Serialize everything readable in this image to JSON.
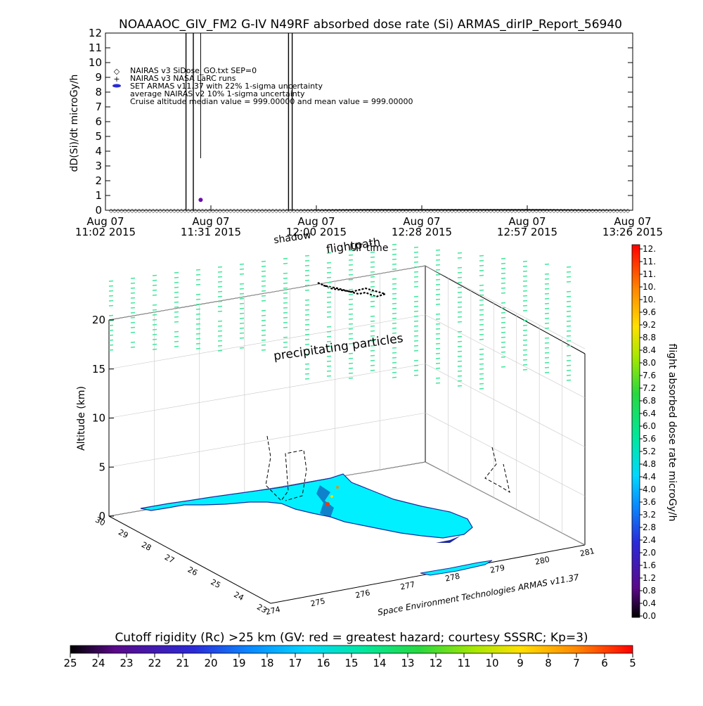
{
  "title": "NOAAAOC_GIV_FM2 G-IV   N49RF  absorbed dose rate (Si) ARMAS_dirIP_Report_56940",
  "top_panel": {
    "ylabel": "dD(Si)/dt microGy/h",
    "xlabel": "UT time",
    "legend": [
      "NAIRAS v3 SiDose_GO.txt SEP=0",
      "NAIRAS v3 NASA LaRC runs",
      "SET ARMAS v11.37 with 22% 1-sigma uncertainty",
      "average NAIRAS v2 10% 1-sigma uncertainty",
      "Cruise altitude median value = 999.00000 and mean value = 999.00000"
    ]
  },
  "three_d_panel": {
    "zlabel": "Altitude (km)",
    "labels": {
      "shadow": "shadow",
      "flightpath": "flightpath",
      "precip": "precipitating particles",
      "credit": "Space Environment Technologies ARMAS v11.37"
    },
    "z_ticks": [
      "0",
      "5",
      "10",
      "15",
      "20"
    ],
    "lat_ticks": [
      "30",
      "29",
      "28",
      "27",
      "26",
      "25",
      "24",
      "23"
    ],
    "lon_ticks": [
      "274",
      "275",
      "276",
      "277",
      "278",
      "279",
      "280",
      "281"
    ]
  },
  "colorbar": {
    "label": "flight absorbed dose rate microGy/h",
    "ticks": [
      "12.",
      "11.",
      "11.",
      "10.",
      "10.",
      "9.6",
      "9.2",
      "8.8",
      "8.4",
      "8.0",
      "7.6",
      "7.2",
      "6.8",
      "6.4",
      "6.0",
      "5.6",
      "5.2",
      "4.8",
      "4.4",
      "4.0",
      "3.6",
      "3.2",
      "2.8",
      "2.4",
      "2.0",
      "1.6",
      "1.2",
      "0.8",
      "0.4",
      "0.0"
    ]
  },
  "cutoff_bar": {
    "label": "Cutoff rigidity (Rc) >25 km (GV: red = greatest hazard; courtesy SSSRC; Kp=3)",
    "ticks": [
      "25",
      "24",
      "23",
      "22",
      "21",
      "20",
      "19",
      "18",
      "17",
      "16",
      "15",
      "14",
      "13",
      "12",
      "11",
      "10",
      "9",
      "8",
      "7",
      "6",
      "5"
    ]
  },
  "chart_data": [
    {
      "type": "line",
      "title": "NOAAAOC_GIV_FM2 G-IV   N49RF  absorbed dose rate (Si) ARMAS_dirIP_Report_56940",
      "xlabel": "UT time",
      "ylabel": "dD(Si)/dt microGy/h",
      "ylim": [
        0,
        12
      ],
      "y_ticks": [
        "0",
        "1",
        "2",
        "3",
        "4",
        "5",
        "6",
        "7",
        "8",
        "9",
        "10",
        "11",
        "12"
      ],
      "x_ticks": [
        {
          "date": "Aug 07",
          "time": "11:02 2015"
        },
        {
          "date": "Aug 07",
          "time": "11:31 2015"
        },
        {
          "date": "Aug 07",
          "time": "12:00 2015"
        },
        {
          "date": "Aug 07",
          "time": "12:28 2015"
        },
        {
          "date": "Aug 07",
          "time": "12:57 2015"
        },
        {
          "date": "Aug 07",
          "time": "13:26 2015"
        }
      ],
      "xlim": [
        "11:02",
        "13:26"
      ],
      "series": [
        {
          "name": "SET ARMAS v11.37 with 22% 1-sigma uncertainty",
          "color": "#6a0dad",
          "points": [
            {
              "x": "11:28",
              "y": 0.7
            }
          ]
        },
        {
          "name": "NAIRAS v3 SiDose_GO.txt SEP=0",
          "color": "#000000",
          "marker": "diamond",
          "values_note_free": true,
          "points": [
            {
              "x": "11:02",
              "y": 0.0
            },
            {
              "x": "11:50",
              "y": 0.0
            },
            {
              "x": "12:15",
              "y": 0.05
            },
            {
              "x": "12:28",
              "y": 0.05
            },
            {
              "x": "13:00",
              "y": 0.05
            },
            {
              "x": "13:26",
              "y": 0.0
            }
          ]
        }
      ],
      "spikes": [
        {
          "x": "11:24",
          "y": 12
        },
        {
          "x": "11:26",
          "y": 12
        },
        {
          "x": "11:52",
          "y": 12
        },
        {
          "x": "11:53",
          "y": 12
        }
      ]
    },
    {
      "type": "scatter",
      "title": "",
      "zlabel": "Altitude (km)",
      "zlim": [
        0,
        23
      ],
      "lat_range": [
        23,
        30
      ],
      "lon_range": [
        274,
        281
      ],
      "colorbar_range": [
        0.0,
        12.0
      ],
      "colorbar_units": "microGy/h",
      "precipitating_particles_value": 5.0,
      "cutoff_range_GV": [
        25,
        5
      ]
    }
  ],
  "colors": {
    "frame": "#000000",
    "particles": "#3ee89a",
    "land": "#00f0ff",
    "coast": "#1a2aa0"
  }
}
